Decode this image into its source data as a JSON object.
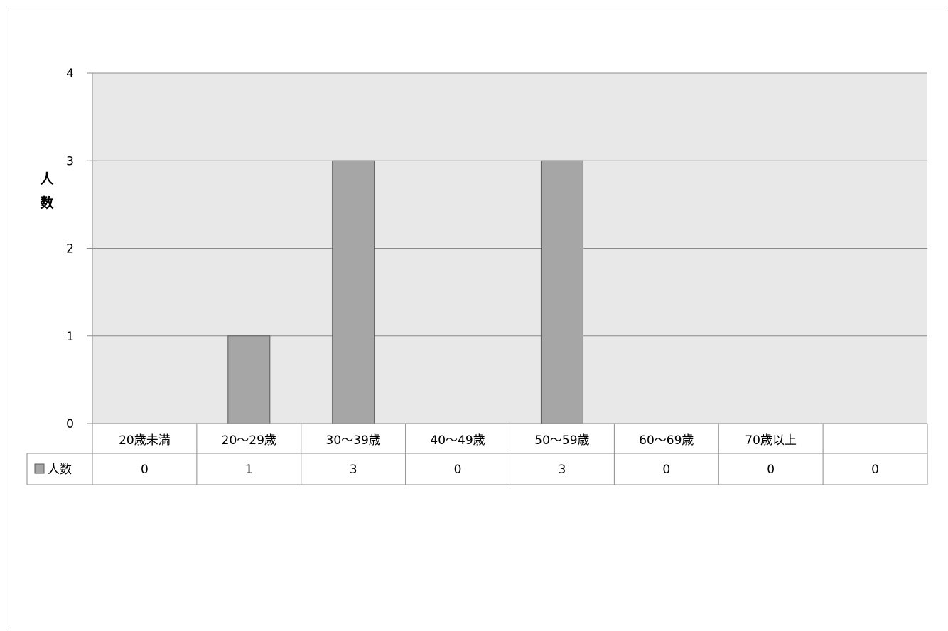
{
  "chart_data": {
    "type": "bar",
    "ylabel": "人数",
    "ylim": [
      0,
      4
    ],
    "yticks": [
      "0",
      "1",
      "2",
      "3",
      "4"
    ],
    "grid": true,
    "categories": [
      "20歳未満",
      "20〜29歳",
      "30〜39歳",
      "40〜49歳",
      "50〜59歳",
      "60〜69歳",
      "70歳以上",
      ""
    ],
    "series": [
      {
        "name": "人数",
        "values": [
          0,
          1,
          3,
          0,
          3,
          0,
          0,
          0
        ],
        "color": "#a6a6a6"
      }
    ],
    "data_table": true,
    "colors": {
      "plot_bg": "#e8e8e8",
      "grid": "#8c8c8c",
      "bar": "#a6a6a6",
      "bar_stroke": "#595959"
    }
  }
}
